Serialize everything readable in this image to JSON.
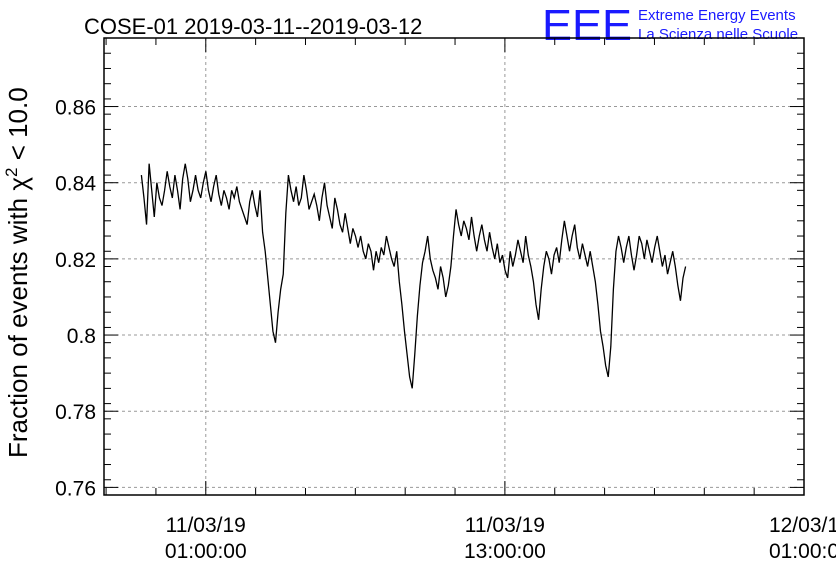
{
  "chart_data": {
    "type": "line",
    "title": "COSE-01 2019-03-11--2019-03-12",
    "ylabel": {
      "prefix": "Fraction of events with ",
      "symbol": "χ",
      "sup": "2",
      "suffix": " < 10.0"
    },
    "xlabel": "",
    "ylim": [
      0.758,
      0.878
    ],
    "yticks": [
      0.76,
      0.78,
      0.8,
      0.82,
      0.84,
      0.86
    ],
    "ytick_labels": [
      "0.76",
      "0.78",
      "0.8",
      "0.82",
      "0.84",
      "0.86"
    ],
    "xlim": [
      "2019-03-10 20:55",
      "2019-03-12 01:00"
    ],
    "xticks": [
      {
        "value": "2019-03-11 01:00",
        "line1": "11/03/19",
        "line2": "01:00:00"
      },
      {
        "value": "2019-03-11 13:00",
        "line1": "11/03/19",
        "line2": "13:00:00"
      },
      {
        "value": "2019-03-12 01:00",
        "line1": "12/03/1",
        "line2": "01:00:0"
      }
    ],
    "grid": true,
    "series": [
      {
        "x_start": "2019-03-10 22:25",
        "x_end": "2019-03-11 20:15",
        "values": [
          0.842,
          0.836,
          0.829,
          0.845,
          0.838,
          0.831,
          0.84,
          0.836,
          0.834,
          0.838,
          0.843,
          0.839,
          0.836,
          0.842,
          0.838,
          0.833,
          0.841,
          0.845,
          0.841,
          0.835,
          0.838,
          0.842,
          0.838,
          0.836,
          0.84,
          0.843,
          0.838,
          0.835,
          0.839,
          0.842,
          0.837,
          0.834,
          0.838,
          0.836,
          0.833,
          0.838,
          0.836,
          0.839,
          0.835,
          0.833,
          0.831,
          0.829,
          0.835,
          0.838,
          0.834,
          0.831,
          0.838,
          0.827,
          0.822,
          0.815,
          0.808,
          0.801,
          0.798,
          0.806,
          0.812,
          0.816,
          0.832,
          0.842,
          0.838,
          0.835,
          0.839,
          0.834,
          0.836,
          0.842,
          0.838,
          0.833,
          0.835,
          0.837,
          0.834,
          0.83,
          0.836,
          0.84,
          0.834,
          0.831,
          0.828,
          0.836,
          0.833,
          0.829,
          0.827,
          0.832,
          0.828,
          0.824,
          0.828,
          0.826,
          0.823,
          0.826,
          0.822,
          0.82,
          0.824,
          0.822,
          0.817,
          0.822,
          0.819,
          0.823,
          0.821,
          0.826,
          0.823,
          0.82,
          0.818,
          0.822,
          0.814,
          0.808,
          0.801,
          0.795,
          0.789,
          0.786,
          0.795,
          0.805,
          0.813,
          0.819,
          0.822,
          0.826,
          0.82,
          0.817,
          0.815,
          0.812,
          0.818,
          0.815,
          0.81,
          0.813,
          0.818,
          0.826,
          0.833,
          0.829,
          0.826,
          0.83,
          0.828,
          0.825,
          0.831,
          0.826,
          0.822,
          0.826,
          0.829,
          0.825,
          0.822,
          0.827,
          0.823,
          0.82,
          0.824,
          0.819,
          0.821,
          0.817,
          0.815,
          0.822,
          0.818,
          0.821,
          0.825,
          0.822,
          0.819,
          0.826,
          0.821,
          0.818,
          0.814,
          0.808,
          0.804,
          0.812,
          0.818,
          0.822,
          0.82,
          0.816,
          0.821,
          0.823,
          0.819,
          0.825,
          0.83,
          0.826,
          0.822,
          0.826,
          0.829,
          0.823,
          0.82,
          0.824,
          0.821,
          0.818,
          0.822,
          0.818,
          0.814,
          0.808,
          0.801,
          0.797,
          0.792,
          0.789,
          0.797,
          0.812,
          0.822,
          0.826,
          0.823,
          0.819,
          0.823,
          0.826,
          0.821,
          0.817,
          0.821,
          0.826,
          0.824,
          0.82,
          0.825,
          0.822,
          0.819,
          0.823,
          0.826,
          0.822,
          0.818,
          0.821,
          0.816,
          0.819,
          0.822,
          0.818,
          0.813,
          0.809,
          0.815,
          0.818
        ]
      }
    ]
  },
  "brand": {
    "logo": "EEE",
    "line1": "Extreme Energy Events",
    "line2": "La Scienza nelle Scuole"
  },
  "colors": {
    "line": "#000000",
    "grid": "#999999",
    "brand": "#1a1aff"
  }
}
